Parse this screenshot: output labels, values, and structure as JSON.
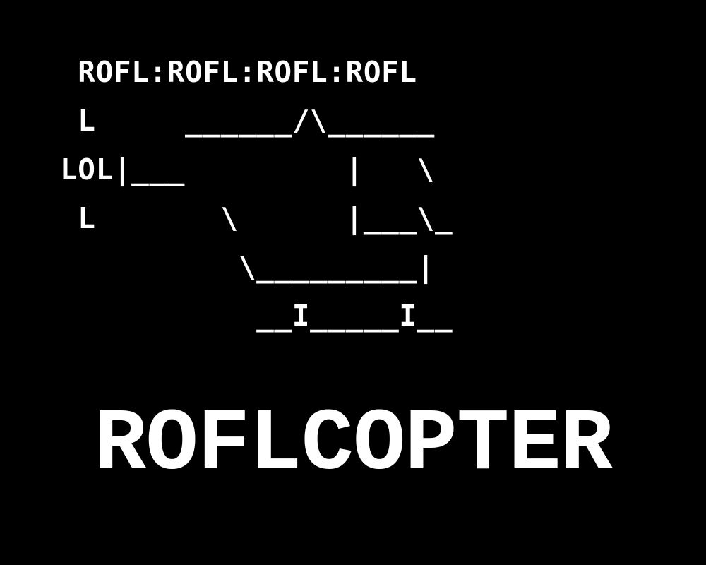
{
  "colors": {
    "background": "#000000",
    "foreground": "#ffffff"
  },
  "ascii_art": {
    "lines": [
      " ROFL:ROFL:ROFL:ROFL",
      " L     ______/\\______",
      "LOL|___         |   \\",
      " L       \\      |___\\_",
      "          \\_________|",
      "           __I_____I__"
    ]
  },
  "title": "ROFLCOPTER"
}
